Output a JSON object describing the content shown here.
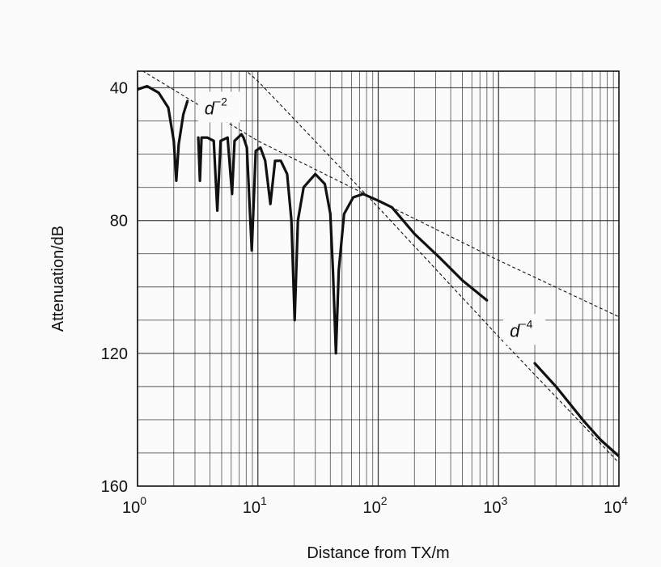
{
  "chart_data": {
    "type": "line",
    "xlabel": "Distance from TX/m",
    "ylabel": "Attenuation/dB",
    "x_scale": "log",
    "xlim": [
      1,
      10000
    ],
    "ylim": [
      160,
      35
    ],
    "y_inverted": true,
    "grid": true,
    "x_ticks": [
      {
        "value": 1,
        "base": "10",
        "exp": "0"
      },
      {
        "value": 10,
        "base": "10",
        "exp": "1"
      },
      {
        "value": 100,
        "base": "10",
        "exp": "2"
      },
      {
        "value": 1000,
        "base": "10",
        "exp": "3"
      },
      {
        "value": 10000,
        "base": "10",
        "exp": "4"
      }
    ],
    "y_ticks": [
      {
        "value": 40,
        "label": "40"
      },
      {
        "value": 80,
        "label": "80"
      },
      {
        "value": 120,
        "label": "120"
      },
      {
        "value": 160,
        "label": "160"
      }
    ],
    "series": [
      {
        "role": "measured attenuation",
        "segments": [
          [
            [
              1.0,
              40.5
            ],
            [
              1.2,
              39.5
            ],
            [
              1.5,
              41.5
            ],
            [
              1.8,
              46
            ],
            [
              2.0,
              56
            ],
            [
              2.1,
              68
            ],
            [
              2.2,
              57
            ],
            [
              2.4,
              48
            ],
            [
              2.6,
              44
            ]
          ],
          [
            [
              3.2,
              55
            ],
            [
              3.3,
              68
            ],
            [
              3.4,
              55
            ],
            [
              3.8,
              55
            ],
            [
              4.3,
              56
            ],
            [
              4.6,
              77
            ],
            [
              4.9,
              56
            ],
            [
              5.6,
              55
            ],
            [
              6.1,
              72
            ],
            [
              6.4,
              56
            ],
            [
              7.3,
              54
            ],
            [
              7.6,
              55
            ],
            [
              8.1,
              58
            ],
            [
              8.9,
              89
            ],
            [
              9.6,
              59
            ],
            [
              10.5,
              58
            ],
            [
              11.5,
              62
            ],
            [
              12.7,
              75
            ],
            [
              13.9,
              62
            ],
            [
              15.5,
              62
            ],
            [
              17.5,
              66
            ],
            [
              19.0,
              80
            ],
            [
              20.2,
              110
            ],
            [
              21.5,
              80
            ],
            [
              24.0,
              70
            ],
            [
              30.0,
              66
            ],
            [
              36.0,
              69
            ],
            [
              40.0,
              78
            ],
            [
              42.0,
              95
            ],
            [
              44.5,
              120
            ],
            [
              47.0,
              95
            ],
            [
              52.0,
              78
            ],
            [
              62.0,
              73
            ],
            [
              75.0,
              72
            ],
            [
              100.0,
              74
            ],
            [
              130.0,
              76
            ],
            [
              200.0,
              84
            ],
            [
              320.0,
              91
            ],
            [
              500.0,
              98
            ],
            [
              800.0,
              104
            ]
          ],
          [
            [
              2000,
              123
            ],
            [
              3000,
              130
            ],
            [
              5000,
              140
            ],
            [
              7000,
              146
            ],
            [
              10000,
              151
            ]
          ]
        ]
      },
      {
        "role": "reference d^-2",
        "points": [
          [
            1,
            34
          ],
          [
            10,
            56
          ],
          [
            100,
            74
          ],
          [
            1000,
            92
          ],
          [
            10000,
            109
          ]
        ]
      },
      {
        "role": "reference d^-4",
        "points": [
          [
            6.5,
            32
          ],
          [
            10,
            38
          ],
          [
            100,
            76
          ],
          [
            1000,
            115
          ],
          [
            10000,
            153
          ]
        ]
      }
    ],
    "annotations": [
      {
        "base": "d",
        "exp": "−2",
        "x": 3.6,
        "y": 48
      },
      {
        "base": "d",
        "exp": "−4",
        "x": 1240,
        "y": 115
      }
    ]
  }
}
